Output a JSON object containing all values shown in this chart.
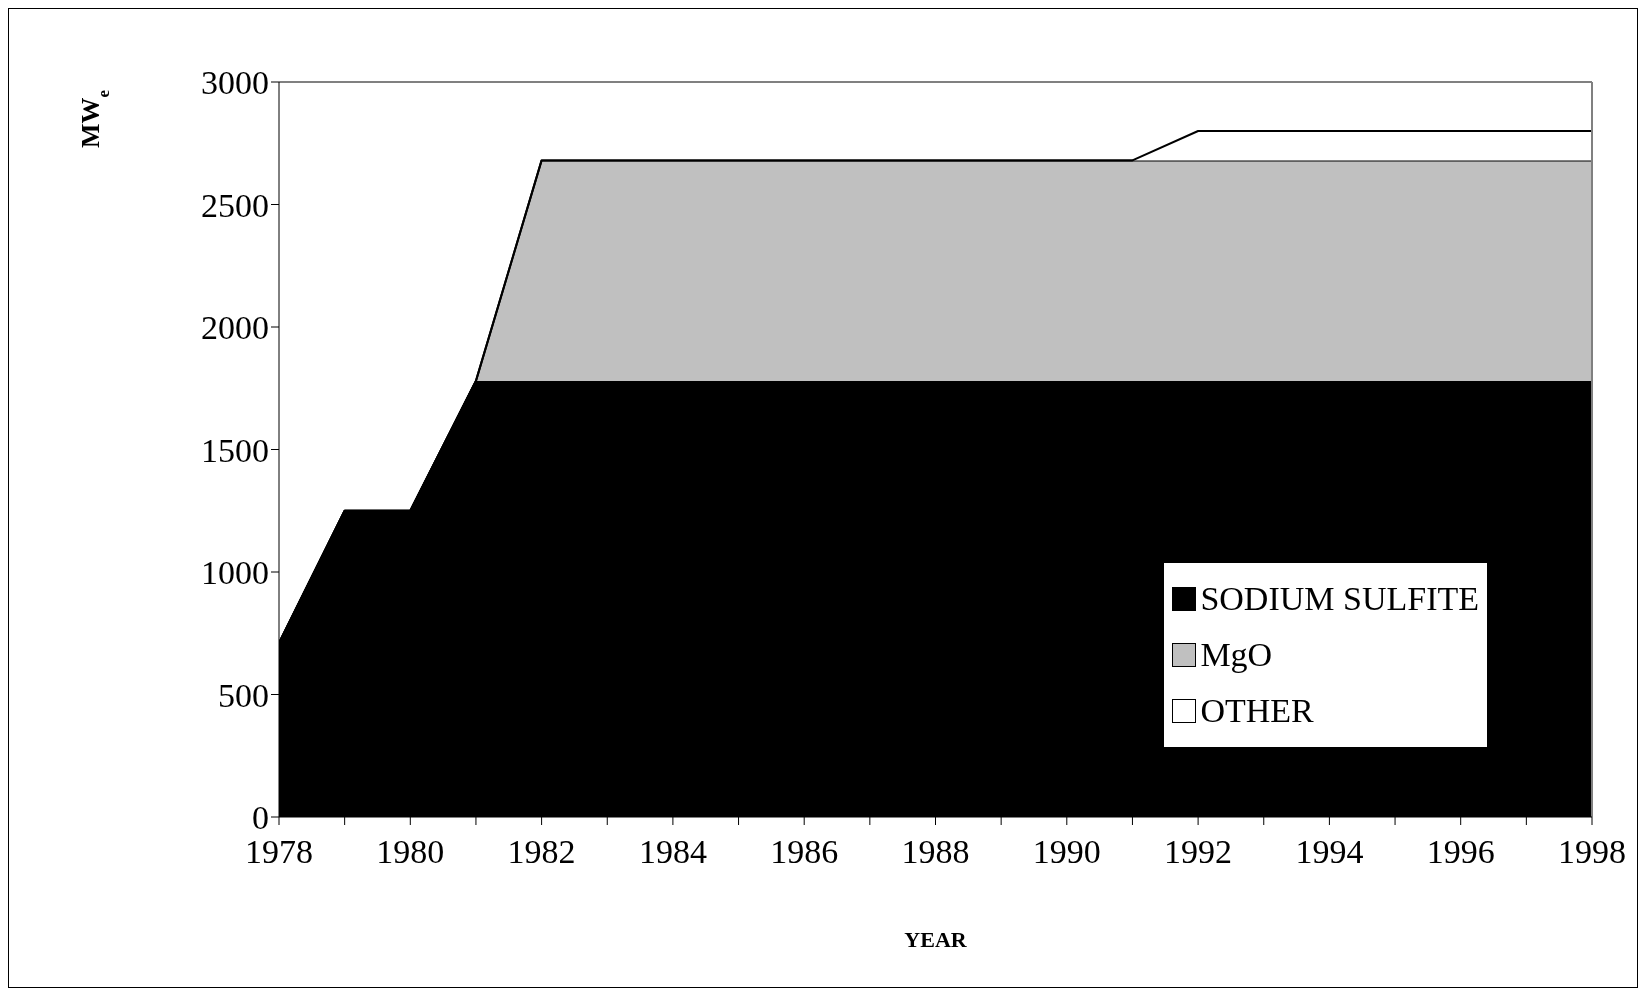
{
  "chart_data": {
    "type": "area",
    "stacked": true,
    "xlabel": "YEAR",
    "ylabel": "MW$_{e}$",
    "x": [
      1978,
      1979,
      1980,
      1981,
      1982,
      1983,
      1984,
      1985,
      1986,
      1987,
      1988,
      1989,
      1990,
      1991,
      1992,
      1993,
      1994,
      1995,
      1996,
      1997,
      1998
    ],
    "series": [
      {
        "name": "SODIUM SULFITE",
        "color": "#000000",
        "values": [
          710,
          1250,
          1250,
          1780,
          1780,
          1780,
          1780,
          1780,
          1780,
          1780,
          1780,
          1780,
          1780,
          1780,
          1780,
          1780,
          1780,
          1780,
          1780,
          1780,
          1780
        ]
      },
      {
        "name": "MgO",
        "color": "#c0c0c0",
        "values": [
          0,
          0,
          0,
          0,
          900,
          900,
          900,
          900,
          900,
          900,
          900,
          900,
          900,
          900,
          900,
          900,
          900,
          900,
          900,
          900,
          900
        ]
      },
      {
        "name": "OTHER",
        "color": "#ffffff",
        "values": [
          0,
          0,
          0,
          0,
          0,
          0,
          0,
          0,
          0,
          0,
          0,
          0,
          0,
          0,
          120,
          120,
          120,
          120,
          120,
          120,
          120
        ]
      }
    ],
    "xlim": [
      1978,
      1998
    ],
    "xticks": [
      1978,
      {
        "value": 1979,
        "label": null
      },
      1980,
      {
        "value": 1981,
        "label": null
      },
      1982,
      {
        "value": 1983,
        "label": null
      },
      1984,
      {
        "value": 1985,
        "label": null
      },
      1986,
      {
        "value": 1987,
        "label": null
      },
      1988,
      {
        "value": 1989,
        "label": null
      },
      1990,
      {
        "value": 1991,
        "label": null
      },
      1992,
      {
        "value": 1993,
        "label": null
      },
      1994,
      {
        "value": 1995,
        "label": null
      },
      1996,
      {
        "value": 1997,
        "label": null
      },
      1998
    ],
    "ylim": [
      0,
      3000
    ],
    "yticks": [
      0,
      500,
      1000,
      1500,
      2000,
      2500,
      3000
    ],
    "grid": false,
    "legend": "bottom right"
  }
}
